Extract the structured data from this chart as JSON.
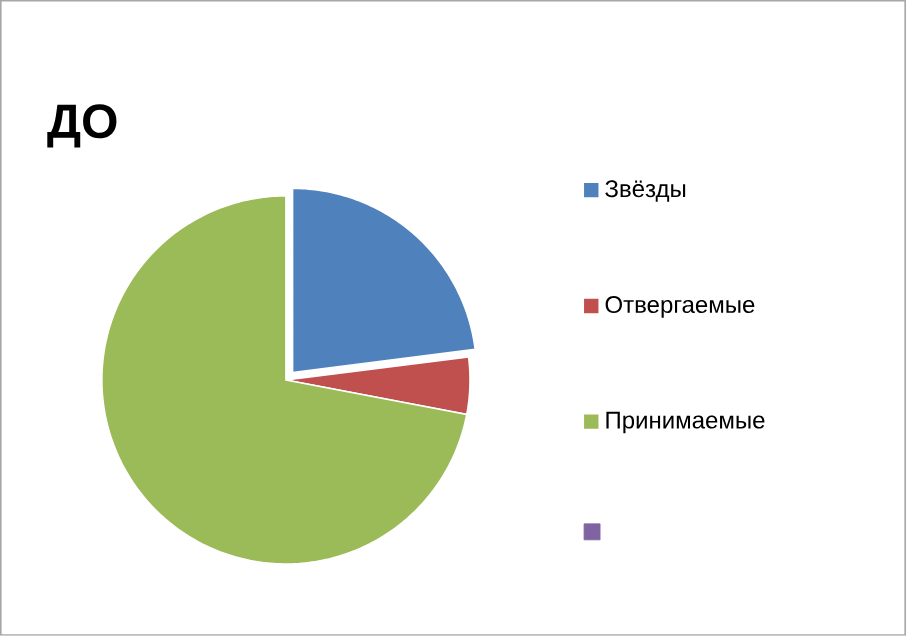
{
  "chart_data": {
    "type": "pie",
    "title": "ДО",
    "categories": [
      "Звёзды",
      "Отвергаемые",
      "Принимаемые",
      null
    ],
    "values": [
      23,
      5,
      72,
      0
    ],
    "colors": [
      "#4f81bd",
      "#c0504d",
      "#9bbb59",
      "#8064a2"
    ],
    "legend": "right"
  }
}
